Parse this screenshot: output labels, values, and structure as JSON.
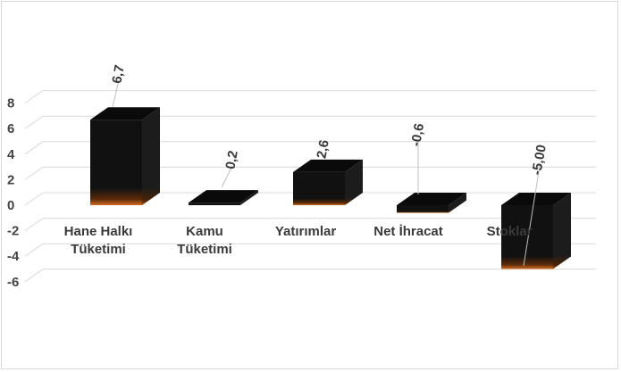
{
  "chart_data": {
    "type": "bar",
    "style": "3d",
    "categories": [
      [
        "Hane Halkı",
        "Tüketimi"
      ],
      [
        "Kamu",
        "Tüketimi"
      ],
      [
        "Yatırımlar"
      ],
      [
        "Net İhracat"
      ],
      [
        "Stoklar"
      ]
    ],
    "values": [
      6.7,
      0.2,
      2.6,
      -0.6,
      -5.0
    ],
    "data_labels": [
      "6,7",
      "0,2",
      "2,6",
      "-0,6",
      "-5,00"
    ],
    "yticks": [
      8,
      6,
      4,
      2,
      0,
      -2,
      -4,
      -6
    ],
    "ylim": [
      -6,
      8
    ],
    "grid": true,
    "legend": "none",
    "colors": {
      "bar_front": "#111111",
      "bar_side": "#1f1f1f",
      "bar_top": "#0a0a0a",
      "bar_glow": "#c8641e",
      "grid": "#d9d9d9",
      "leader": "#bfbfbf"
    }
  }
}
